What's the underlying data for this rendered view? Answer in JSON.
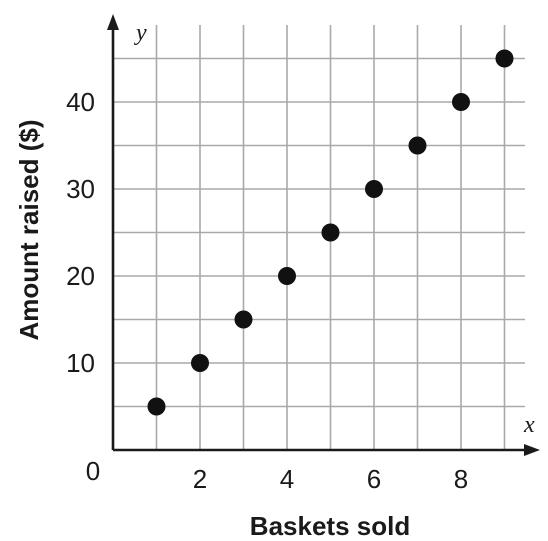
{
  "chart_data": {
    "type": "scatter",
    "xlabel": "Baskets sold",
    "ylabel": "Amount raised ($)",
    "x_axis_var": "x",
    "y_axis_var": "y",
    "origin_label": "0",
    "xlim": [
      0,
      10
    ],
    "ylim": [
      0,
      48
    ],
    "x_ticks": [
      2,
      4,
      6,
      8
    ],
    "x_tick_labels": [
      "2",
      "4",
      "6",
      "8"
    ],
    "y_ticks": [
      10,
      20,
      30,
      40
    ],
    "y_tick_labels": [
      "10",
      "20",
      "30",
      "40"
    ],
    "x_grid_step": 1,
    "y_grid_step": 5,
    "grid": true,
    "point_color": "#111111",
    "x": [
      1,
      2,
      3,
      4,
      5,
      6,
      7,
      8,
      9
    ],
    "y": [
      5,
      10,
      15,
      20,
      25,
      30,
      35,
      40,
      45
    ]
  }
}
